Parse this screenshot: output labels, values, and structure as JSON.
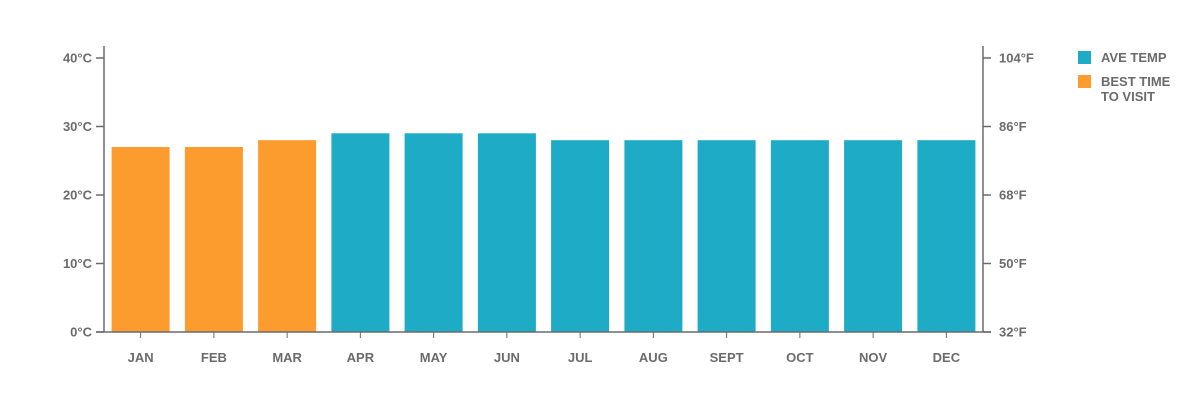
{
  "chart_data": {
    "type": "bar",
    "categories": [
      "JAN",
      "FEB",
      "MAR",
      "APR",
      "MAY",
      "JUN",
      "JUL",
      "AUG",
      "SEPT",
      "OCT",
      "NOV",
      "DEC"
    ],
    "values": [
      27,
      27,
      28,
      29,
      29,
      29,
      28,
      28,
      28,
      28,
      28,
      28
    ],
    "highlight": [
      true,
      true,
      true,
      false,
      false,
      false,
      false,
      false,
      false,
      false,
      false,
      false
    ],
    "ylim": [
      0,
      40
    ],
    "y_ticks": [
      0,
      10,
      20,
      30,
      40
    ],
    "y_tick_labels": [
      "0°C",
      "10°C",
      "20°C",
      "30°C",
      "40°C"
    ],
    "y2_tick_labels": [
      "32°F",
      "50°F",
      "68°F",
      "86°F",
      "104°F"
    ],
    "grid": false,
    "legend_position": "top-right",
    "colors": {
      "base": "#1eabc5",
      "highlight": "#fc9b2e",
      "axis": "#6b6b6b"
    },
    "legend": [
      {
        "label": "AVE TEMP",
        "color": "#1eabc5"
      },
      {
        "label": "BEST TIME TO VISIT",
        "color": "#fc9b2e"
      }
    ]
  }
}
